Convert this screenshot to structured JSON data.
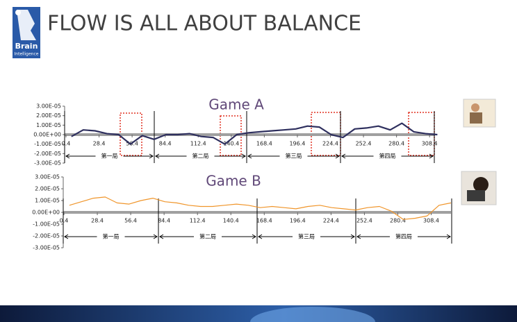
{
  "slide_title": "FLOW IS ALL ABOUT BALANCE",
  "logo": {
    "line1": "Brain",
    "line2": "Intelligence"
  },
  "chart_data": [
    {
      "type": "line",
      "title": "Game A",
      "x": [
        5,
        15,
        25,
        35,
        45,
        55,
        65,
        75,
        85,
        95,
        105,
        115,
        125,
        135,
        145,
        155,
        165,
        175,
        185,
        195,
        205,
        215,
        225,
        235,
        245,
        255,
        265,
        275,
        285,
        295,
        305,
        315
      ],
      "series": [
        {
          "name": "Game A",
          "color": "#2e2f5e",
          "values": [
            -2e-06,
            5e-06,
            4e-06,
            1e-06,
            0,
            -1e-05,
            -1e-06,
            -5e-06,
            0,
            0,
            1e-06,
            -2e-06,
            -3e-06,
            -1e-05,
            0,
            2e-06,
            3e-06,
            4e-06,
            5e-06,
            6e-06,
            9e-06,
            8e-06,
            0,
            -3e-06,
            6e-06,
            7e-06,
            9e-06,
            5e-06,
            1.2e-05,
            3e-06,
            1e-06,
            0
          ]
        }
      ],
      "xlim": [
        0.4,
        313
      ],
      "xticks": [
        0.4,
        28.4,
        56.4,
        84.4,
        112.4,
        140.4,
        168.4,
        196.4,
        224.4,
        252.4,
        280.4,
        308.4
      ],
      "ylim": [
        -3e-05,
        3e-05
      ],
      "yticks": [
        {
          "value": 3e-05,
          "label": "3.00E-05"
        },
        {
          "value": 2e-05,
          "label": "2.00E-05"
        },
        {
          "value": 1e-05,
          "label": "1.00E-05"
        },
        {
          "value": 0,
          "label": "0.00E+00"
        },
        {
          "value": -1e-05,
          "label": "-1.00E-05"
        },
        {
          "value": -2e-05,
          "label": "-2.00E-05"
        },
        {
          "value": -3e-05,
          "label": "-3.00E-05"
        }
      ],
      "annotations": [
        "第一局",
        "第二局",
        "第三局",
        "第四局"
      ]
    },
    {
      "type": "line",
      "title": "Game B",
      "x": [
        5,
        15,
        25,
        35,
        45,
        55,
        65,
        75,
        85,
        95,
        105,
        115,
        125,
        135,
        145,
        155,
        165,
        175,
        185,
        195,
        205,
        215,
        225,
        235,
        245,
        255,
        265,
        275,
        285,
        295,
        305,
        315,
        325
      ],
      "series": [
        {
          "name": "Game B",
          "color": "#f0952a",
          "values": [
            6e-06,
            9e-06,
            1.2e-05,
            1.3e-05,
            8e-06,
            7e-06,
            1e-05,
            1.2e-05,
            9e-06,
            8e-06,
            6e-06,
            5e-06,
            5e-06,
            6e-06,
            7e-06,
            6e-06,
            4e-06,
            5e-06,
            4e-06,
            3e-06,
            5e-06,
            6e-06,
            4e-06,
            3e-06,
            2e-06,
            4e-06,
            5e-06,
            1e-06,
            -6e-06,
            -5e-06,
            -3e-06,
            6e-06,
            8e-06
          ]
        }
      ],
      "xlim": [
        0.4,
        325
      ],
      "xticks": [
        0.4,
        28.4,
        56.4,
        84.4,
        112.4,
        140.4,
        168.4,
        196.4,
        224.4,
        252.4,
        280.4,
        308.4
      ],
      "ylim": [
        -3e-05,
        3e-05
      ],
      "yticks": [
        {
          "value": 3e-05,
          "label": "3.00E-05"
        },
        {
          "value": 2e-05,
          "label": "2.00E-05"
        },
        {
          "value": 1e-05,
          "label": "1.00E-05"
        },
        {
          "value": 0,
          "label": "0.00E+00"
        },
        {
          "value": -1e-05,
          "label": "-1.00E-05"
        },
        {
          "value": -2e-05,
          "label": "-2.00E-05"
        },
        {
          "value": -3e-05,
          "label": "-3.00E-05"
        }
      ],
      "annotations": [
        "第一局",
        "第二局",
        "第三局",
        "第四局"
      ]
    }
  ]
}
